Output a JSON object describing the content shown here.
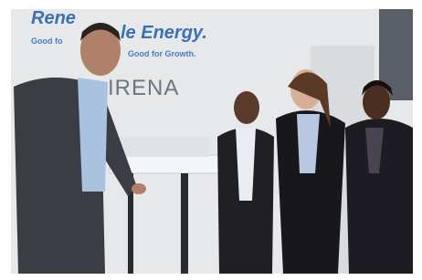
{
  "banner": {
    "headline_left": "Rene",
    "headline_right": "le Energy.",
    "tagline_left": "Good fo",
    "tagline_right": "Good for Growth.",
    "logo": "IRENA"
  }
}
